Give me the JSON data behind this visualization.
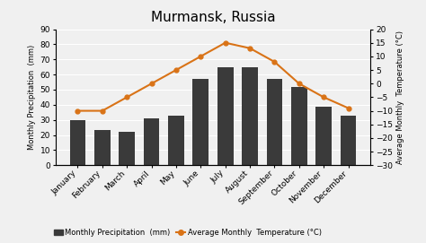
{
  "title": "Murmansk, Russia",
  "months": [
    "January",
    "February",
    "March",
    "April",
    "May",
    "June",
    "July",
    "August",
    "September",
    "October",
    "November",
    "December"
  ],
  "precipitation": [
    30,
    23,
    22,
    31,
    33,
    57,
    65,
    65,
    57,
    52,
    39,
    33
  ],
  "temperature": [
    -10,
    -10,
    -5,
    0,
    5,
    10,
    15,
    13,
    8,
    0,
    -5,
    -9
  ],
  "bar_color": "#3a3a3a",
  "line_color": "#d97317",
  "marker_color": "#d97317",
  "ylabel_left": "Monthly Precipitation  (mm)",
  "ylabel_right": "Average Monthly  Temperature (°C)",
  "legend_bar": "Monthly Precipitation  (mm)",
  "legend_line": "Average Monthly  Temperature (°C)",
  "ylim_left": [
    0,
    90
  ],
  "ylim_right": [
    -30,
    20
  ],
  "yticks_left": [
    0,
    10,
    20,
    30,
    40,
    50,
    60,
    70,
    80,
    90
  ],
  "yticks_right": [
    -30,
    -25,
    -20,
    -15,
    -10,
    -5,
    0,
    5,
    10,
    15,
    20
  ],
  "background_color": "#f0f0f0",
  "plot_bg_color": "#f0f0f0",
  "grid_color": "#ffffff",
  "title_fontsize": 11,
  "axis_label_fontsize": 6,
  "tick_fontsize": 6.5,
  "legend_fontsize": 6
}
